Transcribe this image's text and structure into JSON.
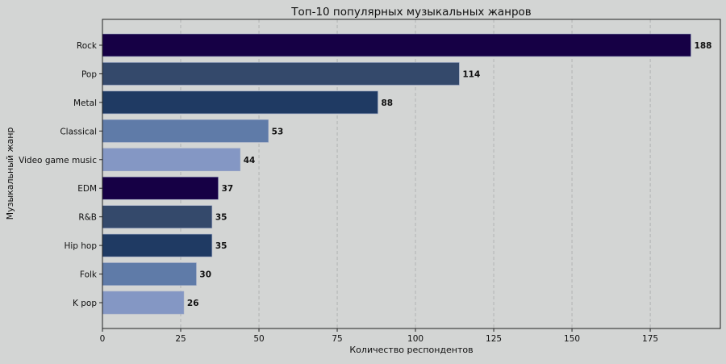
{
  "chart_data": {
    "type": "bar",
    "orientation": "horizontal",
    "title": "Топ-10 популярных музыкальных жанров",
    "xlabel": "Количество респондентов",
    "ylabel": "Музыкальный жанр",
    "categories": [
      "Rock",
      "Pop",
      "Metal",
      "Classical",
      "Video game music",
      "EDM",
      "R&B",
      "Hip hop",
      "Folk",
      "K pop"
    ],
    "values": [
      188,
      114,
      88,
      53,
      44,
      37,
      35,
      35,
      30,
      26
    ],
    "colors": [
      "#160045",
      "#34496b",
      "#1f3a63",
      "#5f7ba8",
      "#8497c4",
      "#160045",
      "#34496b",
      "#1f3a63",
      "#5f7ba8",
      "#8497c4"
    ],
    "xlim": [
      0,
      197.4
    ],
    "xticks": [
      0,
      25,
      50,
      75,
      100,
      125,
      150,
      175
    ],
    "grid": "x-dashed",
    "data_labels": true
  }
}
